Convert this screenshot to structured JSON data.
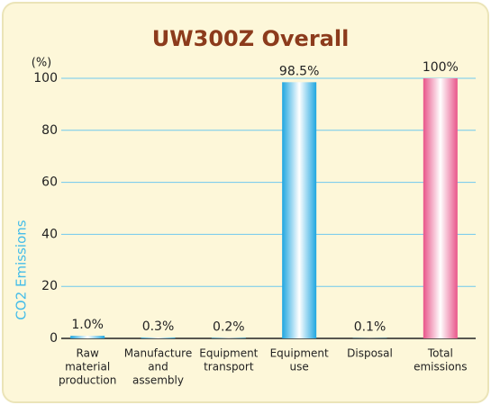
{
  "chart_data": {
    "type": "bar",
    "title": "UW300Z Overall",
    "y_unit": "(%)",
    "y_label": "CO2 Emissions",
    "categories": [
      [
        "Raw",
        "material",
        "production"
      ],
      [
        "Manufacture",
        "and",
        "assembly"
      ],
      [
        "Equipment",
        "transport"
      ],
      [
        "Equipment",
        "use"
      ],
      [
        "Disposal"
      ],
      [
        "Total",
        "emissions"
      ]
    ],
    "values": [
      1.0,
      0.3,
      0.2,
      98.5,
      0.1,
      100
    ],
    "value_labels": [
      "1.0%",
      "0.3%",
      "0.2%",
      "98.5%",
      "0.1%",
      "100%"
    ],
    "colors": [
      "#1fa6e0",
      "#1fa6e0",
      "#1fa6e0",
      "#1fa6e0",
      "#1fa6e0",
      "#e8558a"
    ],
    "ylim": [
      0,
      100
    ],
    "yticks": [
      0,
      20,
      40,
      60,
      80,
      100
    ],
    "grid": true
  }
}
